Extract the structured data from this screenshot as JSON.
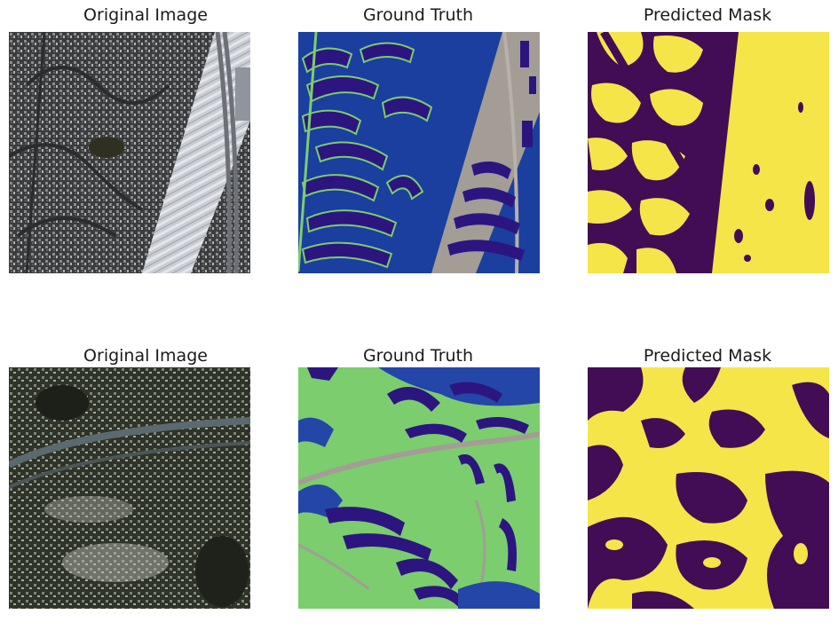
{
  "figure": {
    "rows": [
      {
        "titles": [
          "Original Image",
          "Ground Truth",
          "Predicted Mask"
        ]
      },
      {
        "titles": [
          "Original Image",
          "Ground Truth",
          "Predicted Mask"
        ]
      }
    ]
  },
  "colors": {
    "gt_building": "#2d1580",
    "gt_land": "#7ccd6e",
    "gt_road": "#a39d96",
    "gt_water": "#1a3f9e",
    "gt_blue": "#2446a8",
    "mask_yellow": "#f5e549",
    "mask_purple": "#420d54"
  }
}
